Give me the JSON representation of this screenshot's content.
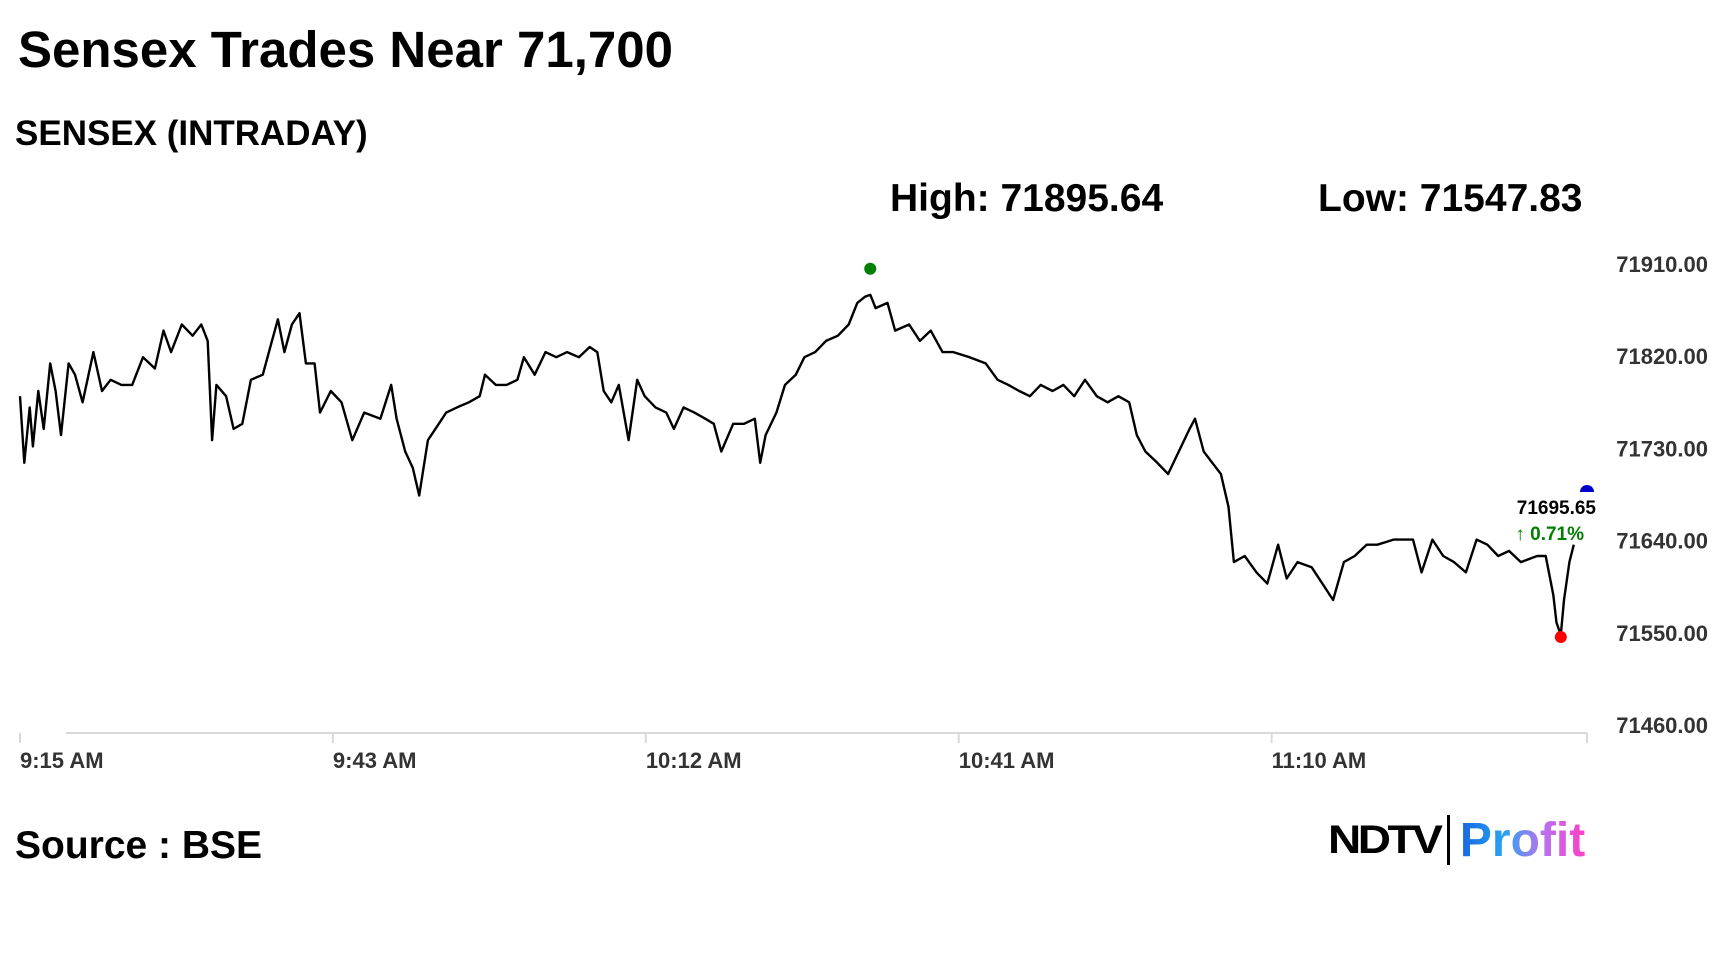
{
  "header": {
    "title": "Sensex Trades Near 71,700",
    "subtitle": "SENSEX (INTRADAY)",
    "high": "High: 71895.64",
    "low": "Low: 71547.83"
  },
  "footer": {
    "source": "Source : BSE",
    "logo_ndtv": "NDTV",
    "logo_profit": "Profit"
  },
  "chart_data": {
    "type": "line",
    "title": "SENSEX (INTRADAY)",
    "xlabel": "",
    "ylabel": "",
    "x_unit": "minutes since 9:15 AM",
    "y_ticks": [
      "71910.00",
      "71820.00",
      "71730.00",
      "71640.00",
      "71550.00",
      "71460.00"
    ],
    "y_tick_values": [
      71910,
      71820,
      71730,
      71640,
      71550,
      71460
    ],
    "ylim": [
      71460,
      71910
    ],
    "x_ticks": [
      "9:15 AM",
      "9:43 AM",
      "10:12 AM",
      "10:41 AM",
      "11:10 AM"
    ],
    "x_tick_values": [
      0,
      29,
      58,
      87,
      116
    ],
    "xlim": [
      0,
      145.4
    ],
    "grid": false,
    "colors": {
      "line": "#000000",
      "high": "#008000",
      "low": "#ff0000",
      "current": "#0000cc",
      "change": "#008000"
    },
    "high_point": {
      "x": 78.8,
      "value": 71895.64
    },
    "low_point": {
      "x": 142.8,
      "value": 71547.83
    },
    "last_label": "71695.65",
    "change_label": "↑ 0.71%",
    "series": [
      {
        "name": "SENSEX",
        "points": [
          [
            0,
            71781
          ],
          [
            0.4,
            71716
          ],
          [
            0.9,
            71770
          ],
          [
            1.2,
            71732
          ],
          [
            1.7,
            71786
          ],
          [
            2.2,
            71749
          ],
          [
            2.8,
            71813
          ],
          [
            3.3,
            71786
          ],
          [
            3.8,
            71743
          ],
          [
            4.5,
            71813
          ],
          [
            5.1,
            71802
          ],
          [
            5.8,
            71775
          ],
          [
            6.8,
            71824
          ],
          [
            7.6,
            71786
          ],
          [
            8.4,
            71797
          ],
          [
            9.4,
            71792
          ],
          [
            10.4,
            71792
          ],
          [
            11.4,
            71819
          ],
          [
            12.5,
            71808
          ],
          [
            13.3,
            71845
          ],
          [
            14.0,
            71824
          ],
          [
            15.0,
            71851
          ],
          [
            16.0,
            71840
          ],
          [
            16.8,
            71851
          ],
          [
            17.4,
            71835
          ],
          [
            17.8,
            71738
          ],
          [
            18.2,
            71792
          ],
          [
            19.1,
            71781
          ],
          [
            19.8,
            71749
          ],
          [
            20.6,
            71754
          ],
          [
            21.4,
            71797
          ],
          [
            22.5,
            71802
          ],
          [
            23.2,
            71829
          ],
          [
            23.9,
            71856
          ],
          [
            24.5,
            71824
          ],
          [
            25.2,
            71851
          ],
          [
            25.9,
            71862
          ],
          [
            26.5,
            71813
          ],
          [
            27.3,
            71813
          ],
          [
            27.8,
            71765
          ],
          [
            28.8,
            71786
          ],
          [
            29.8,
            71775
          ],
          [
            30.8,
            71738
          ],
          [
            31.9,
            71765
          ],
          [
            33.4,
            71759
          ],
          [
            34.4,
            71792
          ],
          [
            34.9,
            71759
          ],
          [
            35.7,
            71727
          ],
          [
            36.4,
            71711
          ],
          [
            37.0,
            71684
          ],
          [
            37.8,
            71738
          ],
          [
            38.5,
            71749
          ],
          [
            39.5,
            71765
          ],
          [
            40.5,
            71770
          ],
          [
            41.6,
            71775
          ],
          [
            42.6,
            71781
          ],
          [
            43.1,
            71802
          ],
          [
            44.1,
            71792
          ],
          [
            45.1,
            71792
          ],
          [
            46.1,
            71797
          ],
          [
            46.7,
            71819
          ],
          [
            47.7,
            71802
          ],
          [
            48.7,
            71824
          ],
          [
            49.7,
            71819
          ],
          [
            50.7,
            71824
          ],
          [
            51.8,
            71819
          ],
          [
            52.8,
            71829
          ],
          [
            53.5,
            71824
          ],
          [
            54.1,
            71786
          ],
          [
            54.8,
            71775
          ],
          [
            55.5,
            71792
          ],
          [
            56.4,
            71738
          ],
          [
            57.2,
            71797
          ],
          [
            57.9,
            71781
          ],
          [
            58.9,
            71770
          ],
          [
            59.9,
            71765
          ],
          [
            60.6,
            71749
          ],
          [
            61.5,
            71770
          ],
          [
            62.5,
            71765
          ],
          [
            63.5,
            71759
          ],
          [
            64.3,
            71754
          ],
          [
            65.0,
            71727
          ],
          [
            66.1,
            71754
          ],
          [
            67.1,
            71754
          ],
          [
            68.1,
            71759
          ],
          [
            68.6,
            71716
          ],
          [
            69.1,
            71743
          ],
          [
            70.1,
            71765
          ],
          [
            70.9,
            71792
          ],
          [
            71.9,
            71802
          ],
          [
            72.7,
            71819
          ],
          [
            73.7,
            71824
          ],
          [
            74.7,
            71835
          ],
          [
            75.8,
            71840
          ],
          [
            76.8,
            71851
          ],
          [
            77.6,
            71872
          ],
          [
            78.3,
            71878
          ],
          [
            78.8,
            71880
          ],
          [
            79.3,
            71867
          ],
          [
            80.4,
            71872
          ],
          [
            81.1,
            71845
          ],
          [
            82.4,
            71851
          ],
          [
            83.4,
            71835
          ],
          [
            84.4,
            71845
          ],
          [
            85.5,
            71824
          ],
          [
            86.5,
            71824
          ],
          [
            88.0,
            71819
          ],
          [
            89.5,
            71813
          ],
          [
            90.6,
            71797
          ],
          [
            91.6,
            71792
          ],
          [
            92.6,
            71786
          ],
          [
            93.6,
            71781
          ],
          [
            94.6,
            71792
          ],
          [
            95.7,
            71786
          ],
          [
            96.7,
            71792
          ],
          [
            97.7,
            71781
          ],
          [
            98.7,
            71797
          ],
          [
            99.8,
            71781
          ],
          [
            100.8,
            71775
          ],
          [
            101.8,
            71781
          ],
          [
            102.8,
            71775
          ],
          [
            103.5,
            71743
          ],
          [
            104.3,
            71727
          ],
          [
            105.4,
            71716
          ],
          [
            106.4,
            71705
          ],
          [
            107.4,
            71727
          ],
          [
            108.4,
            71749
          ],
          [
            108.9,
            71759
          ],
          [
            109.7,
            71727
          ],
          [
            110.5,
            71716
          ],
          [
            111.3,
            71705
          ],
          [
            112.0,
            71673
          ],
          [
            112.5,
            71619
          ],
          [
            113.5,
            71625
          ],
          [
            114.6,
            71609
          ],
          [
            115.6,
            71598
          ],
          [
            116.6,
            71636
          ],
          [
            117.4,
            71603
          ],
          [
            118.4,
            71619
          ],
          [
            119.7,
            71614
          ],
          [
            120.7,
            71598
          ],
          [
            121.7,
            71582
          ],
          [
            122.7,
            71619
          ],
          [
            123.7,
            71625
          ],
          [
            124.8,
            71636
          ],
          [
            125.8,
            71636
          ],
          [
            127.3,
            71641
          ],
          [
            128.3,
            71641
          ],
          [
            129.1,
            71641
          ],
          [
            129.9,
            71609
          ],
          [
            130.9,
            71641
          ],
          [
            131.9,
            71625
          ],
          [
            132.9,
            71619
          ],
          [
            134.0,
            71609
          ],
          [
            135.0,
            71641
          ],
          [
            136.0,
            71636
          ],
          [
            137.0,
            71625
          ],
          [
            138.0,
            71630
          ],
          [
            139.1,
            71619
          ],
          [
            140.6,
            71625
          ],
          [
            141.4,
            71625
          ],
          [
            142.1,
            71587
          ],
          [
            142.4,
            71560
          ],
          [
            142.8,
            71548
          ],
          [
            143.1,
            71582
          ],
          [
            143.6,
            71619
          ],
          [
            144.0,
            71636
          ]
        ]
      }
    ]
  }
}
